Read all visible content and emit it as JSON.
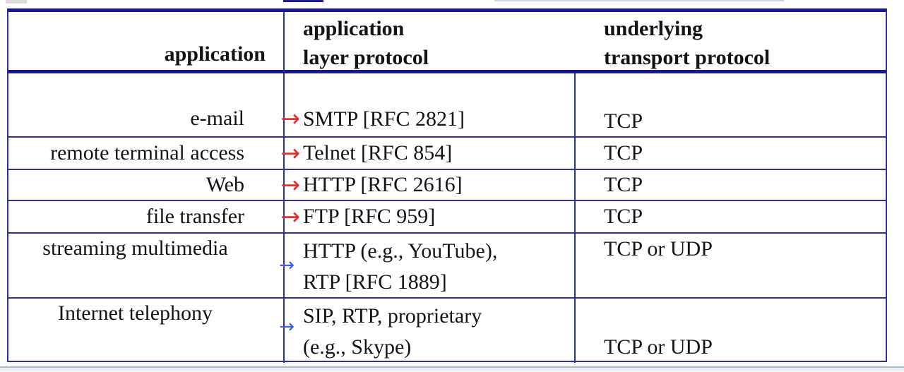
{
  "table": {
    "header": {
      "application": "application",
      "app_protocol_line1": "application",
      "app_protocol_line2": "layer protocol",
      "transport_line1": "underlying",
      "transport_line2": "transport protocol"
    },
    "rows": [
      {
        "application": "e-mail",
        "protocol": "SMTP [RFC 2821]",
        "transport": "TCP",
        "arrow_color": "red"
      },
      {
        "application": "remote terminal access",
        "protocol": "Telnet [RFC 854]",
        "transport": "TCP",
        "arrow_color": "red"
      },
      {
        "application": "Web",
        "protocol": "HTTP [RFC 2616]",
        "transport": "TCP",
        "arrow_color": "red"
      },
      {
        "application": "file transfer",
        "protocol": "FTP [RFC 959]",
        "transport": "TCP",
        "arrow_color": "red"
      },
      {
        "application": "streaming multimedia",
        "protocol_line1": "HTTP (e.g., YouTube),",
        "protocol_line2": "RTP [RFC 1889]",
        "transport": "TCP or UDP",
        "arrow_color": "blue"
      },
      {
        "application": "Internet telephony",
        "protocol_line1": "SIP, RTP, proprietary",
        "protocol_line2": "(e.g., Skype)",
        "transport": "TCP or UDP",
        "arrow_color": "blue"
      }
    ]
  },
  "icons": {
    "flow_arrow": "→"
  },
  "colors": {
    "border_thick_navy": "#191994",
    "border_thin_navy": "#2f3494",
    "arrow_red": "#e03230",
    "arrow_blue": "#3a5ae8",
    "text": "#141414",
    "bottom_band": "#edeff3",
    "bottom_band_edge": "#aebdd4"
  }
}
